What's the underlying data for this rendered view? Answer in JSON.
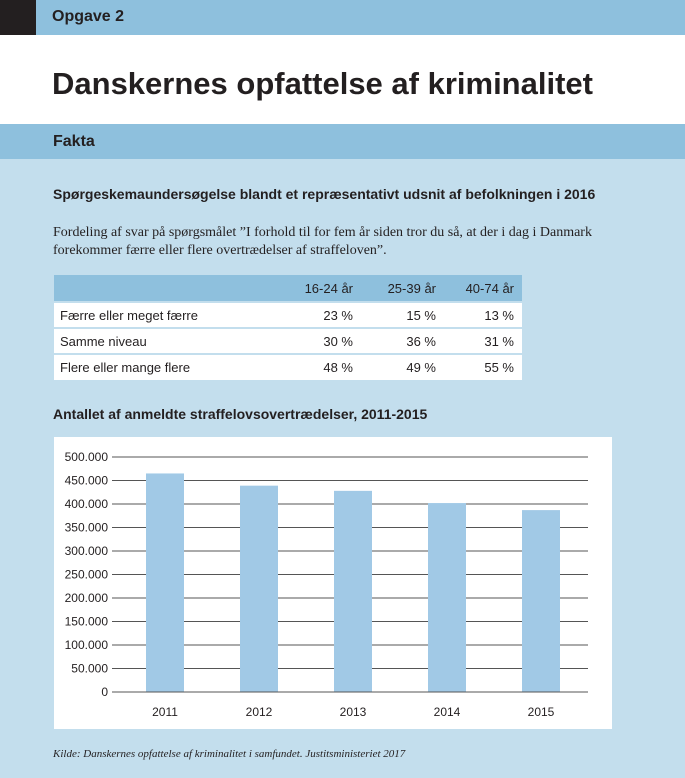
{
  "header": {
    "label": "Opgave 2"
  },
  "title": "Danskernes opfattelse af kriminalitet",
  "section": {
    "label": "Fakta"
  },
  "survey": {
    "heading": "Spørgeskemaundersøgelse blandt et repræsentativt udsnit af befolkningen i 2016",
    "description": "Fordeling af svar på spørgsmålet ”I forhold til for fem år siden tror du så, at der i dag i Danmark forekommer færre eller flere overtrædelser af straffeloven”.",
    "columns": [
      "",
      "16-24 år",
      "25-39 år",
      "40-74 år"
    ],
    "rows": [
      {
        "label": "Færre eller meget færre",
        "values": [
          "23 %",
          "15 %",
          "13 %"
        ]
      },
      {
        "label": "Samme niveau",
        "values": [
          "30 %",
          "36 %",
          "31 %"
        ]
      },
      {
        "label": "Flere eller mange flere",
        "values": [
          "48 %",
          "49 %",
          "55 %"
        ]
      }
    ]
  },
  "chart_heading": "Antallet af anmeldte straffelovsovertrædelser, 2011-2015",
  "chart_data": {
    "type": "bar",
    "title": "Antallet af anmeldte straffelovsovertrædelser, 2011-2015",
    "categories": [
      "2011",
      "2012",
      "2013",
      "2014",
      "2015"
    ],
    "values": [
      465000,
      439000,
      428000,
      402000,
      387000
    ],
    "ylim": [
      0,
      500000
    ],
    "yticks": [
      0,
      50000,
      100000,
      150000,
      200000,
      250000,
      300000,
      350000,
      400000,
      450000,
      500000
    ],
    "ytick_labels": [
      "0",
      "50.000",
      "100.000",
      "150.000",
      "200.000",
      "250.000",
      "300.000",
      "350.000",
      "400.000",
      "450.000",
      "500.000"
    ],
    "grid": true,
    "bar_color": "#a1c9e6",
    "grid_color": "#555555"
  },
  "source": "Kilde: Danskernes opfattelse af kriminalitet i samfundet. Justitsministeriet 2017",
  "colors": {
    "accent": "#8ec0dd",
    "panel": "#c3deed",
    "text": "#231f20"
  }
}
